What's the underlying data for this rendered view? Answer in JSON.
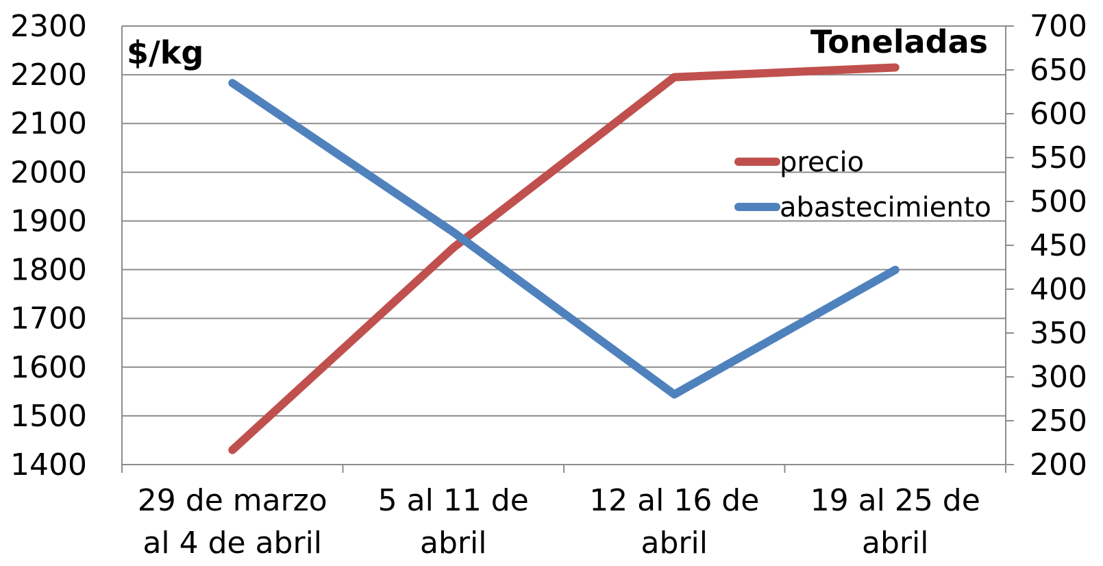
{
  "chart_data": {
    "type": "line",
    "left_axis": {
      "label": "$/kg",
      "min": 1400,
      "max": 2300,
      "step": 100
    },
    "right_axis": {
      "label": "Toneladas",
      "min": 200,
      "max": 700,
      "step": 50
    },
    "categories": [
      [
        "29 de marzo",
        "al 4 de abril"
      ],
      [
        "5 al 11 de",
        "abril"
      ],
      [
        "12 al 16 de",
        "abril"
      ],
      [
        "19 al 25 de",
        "abril"
      ]
    ],
    "series": [
      {
        "name": "precio",
        "axis": "left",
        "color": "#c0504d",
        "values": [
          1430,
          1845,
          2195,
          2215
        ]
      },
      {
        "name": "abastecimiento",
        "axis": "right",
        "color": "#4f81bd",
        "values": [
          635,
          465,
          280,
          422
        ]
      }
    ],
    "grid": true,
    "legend_position": "right"
  }
}
